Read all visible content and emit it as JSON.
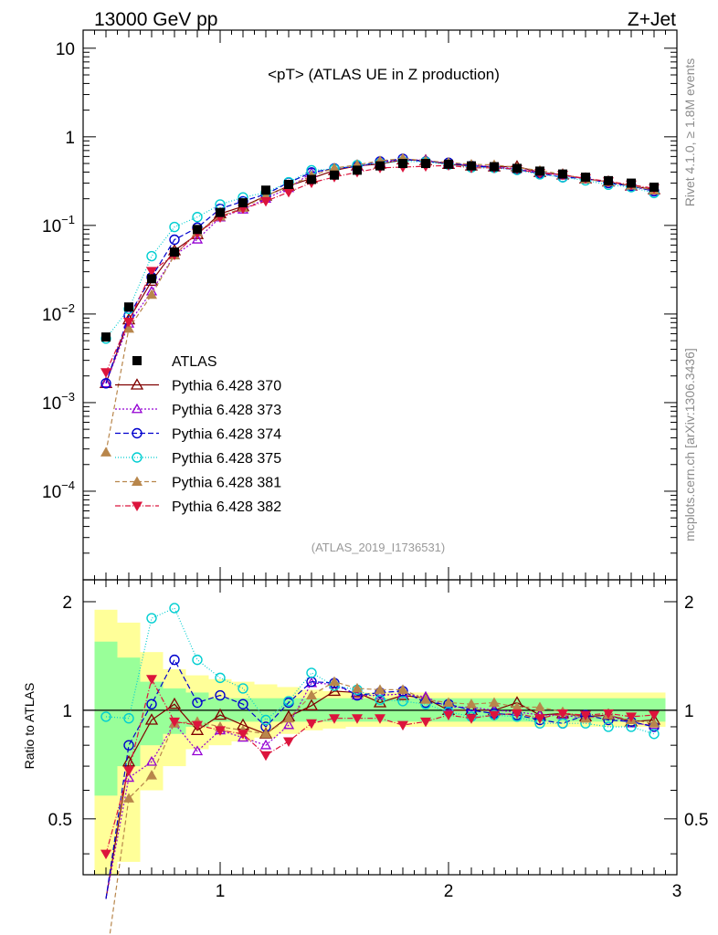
{
  "header": {
    "left_title": "13000 GeV pp",
    "right_title": "Z+Jet"
  },
  "side_labels": {
    "rivet": "Rivet 4.1.0, ≥ 1.8M events",
    "mcplots": "mcplots.cern.ch [arXiv:1306.3436]"
  },
  "chart_data": {
    "type": "line",
    "title": "<pT> (ATLAS UE in Z production)",
    "analysis_id": "(ATLAS_2019_I1736531)",
    "main": {
      "yscale": "log",
      "xlim": [
        0.4,
        3.0
      ],
      "ylim": [
        1e-05,
        16
      ],
      "ytick_labels": [
        "10^-4",
        "10^-3",
        "10^-2",
        "10^-1",
        "1",
        "10"
      ]
    },
    "ratio": {
      "ylabel": "Ratio to ATLAS",
      "ylim": [
        0.35,
        2.3
      ],
      "ytick_labels": [
        "0.5",
        "1",
        "2"
      ],
      "xtick_labels": [
        "1",
        "2",
        "3"
      ],
      "band_yellow": [
        {
          "x0": 0.45,
          "x1": 0.55,
          "lo": 0.3,
          "hi": 1.9
        },
        {
          "x0": 0.55,
          "x1": 0.65,
          "lo": 0.38,
          "hi": 1.75
        },
        {
          "x0": 0.65,
          "x1": 0.75,
          "lo": 0.6,
          "hi": 1.45
        },
        {
          "x0": 0.75,
          "x1": 0.85,
          "lo": 0.7,
          "hi": 1.3
        },
        {
          "x0": 0.85,
          "x1": 0.95,
          "lo": 0.78,
          "hi": 1.25
        },
        {
          "x0": 0.95,
          "x1": 1.05,
          "lo": 0.8,
          "hi": 1.22
        },
        {
          "x0": 1.05,
          "x1": 1.15,
          "lo": 0.82,
          "hi": 1.2
        },
        {
          "x0": 1.15,
          "x1": 1.25,
          "lo": 0.84,
          "hi": 1.18
        },
        {
          "x0": 1.25,
          "x1": 1.35,
          "lo": 0.86,
          "hi": 1.16
        },
        {
          "x0": 1.35,
          "x1": 1.45,
          "lo": 0.88,
          "hi": 1.14
        },
        {
          "x0": 1.45,
          "x1": 1.55,
          "lo": 0.89,
          "hi": 1.13
        },
        {
          "x0": 1.55,
          "x1": 2.95,
          "lo": 0.9,
          "hi": 1.12
        }
      ],
      "band_green": [
        {
          "x0": 0.45,
          "x1": 0.55,
          "lo": 0.58,
          "hi": 1.55
        },
        {
          "x0": 0.55,
          "x1": 0.65,
          "lo": 0.7,
          "hi": 1.4
        },
        {
          "x0": 0.65,
          "x1": 0.75,
          "lo": 0.8,
          "hi": 1.2
        },
        {
          "x0": 0.75,
          "x1": 0.85,
          "lo": 0.86,
          "hi": 1.15
        },
        {
          "x0": 0.85,
          "x1": 0.95,
          "lo": 0.9,
          "hi": 1.12
        },
        {
          "x0": 0.95,
          "x1": 2.95,
          "lo": 0.93,
          "hi": 1.08
        }
      ]
    },
    "x": [
      0.5,
      0.6,
      0.7,
      0.8,
      0.9,
      1.0,
      1.1,
      1.2,
      1.3,
      1.4,
      1.5,
      1.6,
      1.7,
      1.8,
      1.9,
      2.0,
      2.1,
      2.2,
      2.3,
      2.4,
      2.5,
      2.6,
      2.7,
      2.8,
      2.9
    ],
    "data": {
      "name": "ATLAS",
      "color": "#000000",
      "values": [
        0.0055,
        0.012,
        0.025,
        0.05,
        0.09,
        0.14,
        0.18,
        0.25,
        0.29,
        0.33,
        0.37,
        0.42,
        0.47,
        0.5,
        0.5,
        0.49,
        0.47,
        0.46,
        0.44,
        0.41,
        0.38,
        0.35,
        0.32,
        0.3,
        0.27
      ]
    },
    "series": [
      {
        "name": "Pythia 6.428 370",
        "color": "#800000",
        "marker": "triangle-open",
        "dash": "",
        "ratio": [
          0.3,
          0.72,
          0.94,
          1.04,
          0.88,
          0.97,
          0.91,
          0.86,
          0.96,
          1.03,
          1.13,
          1.12,
          1.05,
          1.1,
          1.08,
          1.0,
          1.0,
          1.0,
          1.05,
          0.97,
          0.98,
          0.96,
          0.97,
          0.93,
          0.94
        ]
      },
      {
        "name": "Pythia 6.428 373",
        "color": "#9400d3",
        "marker": "triangle-open-small",
        "dash": "2,2",
        "ratio": [
          0.3,
          0.65,
          0.72,
          0.92,
          0.77,
          0.88,
          0.84,
          0.8,
          0.91,
          1.19,
          1.18,
          1.1,
          1.1,
          1.11,
          1.09,
          1.02,
          1.02,
          1.0,
          0.99,
          0.97,
          0.97,
          0.95,
          0.97,
          0.92,
          0.91
        ]
      },
      {
        "name": "Pythia 6.428 374",
        "color": "#0000cd",
        "marker": "circle-open",
        "dash": "6,3",
        "ratio": [
          0.3,
          0.8,
          1.04,
          1.38,
          1.05,
          1.1,
          1.04,
          0.9,
          1.05,
          1.2,
          1.19,
          1.1,
          1.12,
          1.13,
          1.05,
          1.04,
          1.0,
          0.98,
          0.97,
          0.94,
          0.92,
          0.97,
          0.94,
          0.93,
          0.9
        ]
      },
      {
        "name": "Pythia 6.428 375",
        "color": "#00ced1",
        "marker": "circle-open",
        "dash": "1,2",
        "ratio": [
          0.96,
          0.95,
          1.8,
          1.92,
          1.38,
          1.23,
          1.15,
          0.94,
          1.06,
          1.27,
          1.17,
          1.14,
          1.07,
          1.06,
          1.04,
          0.99,
          0.96,
          0.97,
          0.96,
          0.92,
          0.92,
          0.92,
          0.9,
          0.9,
          0.86
        ]
      },
      {
        "name": "Pythia 6.428 381",
        "color": "#b8864b",
        "marker": "triangle-filled",
        "dash": "5,3",
        "ratio": [
          0.05,
          0.57,
          0.66,
          0.92,
          0.93,
          0.9,
          0.88,
          0.86,
          0.95,
          1.1,
          1.2,
          1.15,
          1.14,
          1.14,
          1.07,
          1.05,
          1.04,
          1.05,
          1.02,
          1.02,
          0.99,
          0.95,
          0.97,
          0.94,
          0.92
        ]
      },
      {
        "name": "Pythia 6.428 382",
        "color": "#dc143c",
        "marker": "triangle-down-filled",
        "dash": "6,2,1,2",
        "ratio": [
          0.4,
          0.68,
          1.22,
          0.93,
          0.91,
          0.88,
          0.86,
          0.75,
          0.82,
          0.92,
          0.95,
          0.95,
          0.95,
          0.91,
          0.93,
          0.97,
          0.95,
          0.97,
          0.98,
          0.95,
          0.98,
          0.97,
          0.98,
          0.96,
          0.97
        ]
      }
    ]
  }
}
